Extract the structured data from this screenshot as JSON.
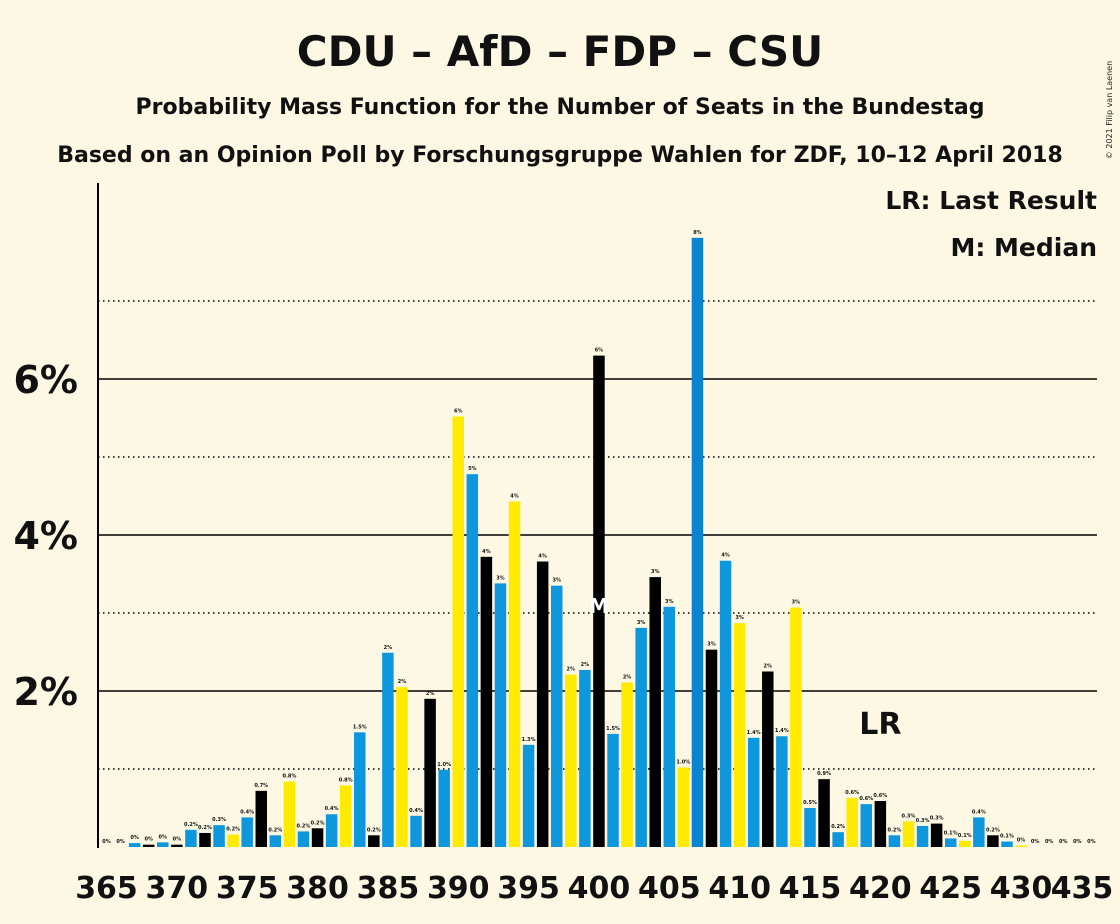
{
  "copyright": "© 2021 Filip van Laenen",
  "chart_data": {
    "type": "bar",
    "title": "CDU – AfD – FDP – CSU",
    "subtitle1": "Probability Mass Function for the Number of Seats in the Bundestag",
    "subtitle2": "Based on an Opinion Poll by Forschungsgruppe Wahlen for ZDF, 10–12 April 2018",
    "legend": [
      {
        "key": "LR",
        "text": "LR: Last Result"
      },
      {
        "key": "M",
        "text": "M: Median"
      }
    ],
    "legend_position": "top-right",
    "median_seats": 400,
    "last_result_seats": 420,
    "median_marker_label": "M",
    "last_result_marker_label": "LR",
    "xlim": [
      365,
      435
    ],
    "ylim": [
      0,
      8.5
    ],
    "y_ticks": [
      {
        "value": 2,
        "label": "2%"
      },
      {
        "value": 4,
        "label": "4%"
      },
      {
        "value": 6,
        "label": "6%"
      }
    ],
    "x_ticks": [
      "365",
      "370",
      "375",
      "380",
      "385",
      "390",
      "395",
      "400",
      "405",
      "410",
      "415",
      "420",
      "425",
      "430",
      "435"
    ],
    "gridlines_dotted": [
      1,
      3,
      5,
      7
    ],
    "gridlines_solid": [
      2,
      4,
      6
    ],
    "colors": {
      "blue": "#0f97dd",
      "black": "#000000",
      "yellow": "#ffea00",
      "dark_blue": "#0a84d0"
    },
    "bars": [
      {
        "seats": 365,
        "value": 0.0,
        "label": "0%",
        "color": "blue"
      },
      {
        "seats": 366,
        "value": 0.0,
        "label": "0%",
        "color": "black"
      },
      {
        "seats": 367,
        "value": 0.05,
        "label": "0%",
        "color": "blue"
      },
      {
        "seats": 368,
        "value": 0.03,
        "label": "0%",
        "color": "black"
      },
      {
        "seats": 369,
        "value": 0.06,
        "label": "0%",
        "color": "blue"
      },
      {
        "seats": 370,
        "value": 0.03,
        "label": "0%",
        "color": "black"
      },
      {
        "seats": 371,
        "value": 0.22,
        "label": "0.2%",
        "color": "blue"
      },
      {
        "seats": 372,
        "value": 0.18,
        "label": "0.2%",
        "color": "black"
      },
      {
        "seats": 373,
        "value": 0.28,
        "label": "0.3%",
        "color": "blue"
      },
      {
        "seats": 374,
        "value": 0.16,
        "label": "0.2%",
        "color": "yellow"
      },
      {
        "seats": 375,
        "value": 0.38,
        "label": "0.4%",
        "color": "blue"
      },
      {
        "seats": 376,
        "value": 0.72,
        "label": "0.7%",
        "color": "black"
      },
      {
        "seats": 377,
        "value": 0.15,
        "label": "0.2%",
        "color": "blue"
      },
      {
        "seats": 378,
        "value": 0.84,
        "label": "0.8%",
        "color": "yellow"
      },
      {
        "seats": 379,
        "value": 0.2,
        "label": "0.2%",
        "color": "blue"
      },
      {
        "seats": 380,
        "value": 0.24,
        "label": "0.2%",
        "color": "black"
      },
      {
        "seats": 381,
        "value": 0.42,
        "label": "0.4%",
        "color": "blue"
      },
      {
        "seats": 382,
        "value": 0.79,
        "label": "0.8%",
        "color": "yellow"
      },
      {
        "seats": 383,
        "value": 1.47,
        "label": "1.5%",
        "color": "blue"
      },
      {
        "seats": 384,
        "value": 0.15,
        "label": "0.2%",
        "color": "black"
      },
      {
        "seats": 385,
        "value": 2.49,
        "label": "2%",
        "color": "blue"
      },
      {
        "seats": 386,
        "value": 2.05,
        "label": "2%",
        "color": "yellow"
      },
      {
        "seats": 387,
        "value": 0.4,
        "label": "0.4%",
        "color": "blue"
      },
      {
        "seats": 388,
        "value": 1.9,
        "label": "2%",
        "color": "black"
      },
      {
        "seats": 389,
        "value": 0.99,
        "label": "1.0%",
        "color": "blue"
      },
      {
        "seats": 390,
        "value": 5.52,
        "label": "6%",
        "color": "yellow"
      },
      {
        "seats": 391,
        "value": 4.78,
        "label": "5%",
        "color": "blue"
      },
      {
        "seats": 392,
        "value": 3.72,
        "label": "4%",
        "color": "black"
      },
      {
        "seats": 393,
        "value": 3.38,
        "label": "3%",
        "color": "blue"
      },
      {
        "seats": 394,
        "value": 4.43,
        "label": "4%",
        "color": "yellow"
      },
      {
        "seats": 395,
        "value": 1.31,
        "label": "1.3%",
        "color": "blue"
      },
      {
        "seats": 396,
        "value": 3.66,
        "label": "4%",
        "color": "black"
      },
      {
        "seats": 397,
        "value": 3.35,
        "label": "3%",
        "color": "blue"
      },
      {
        "seats": 398,
        "value": 2.21,
        "label": "2%",
        "color": "yellow"
      },
      {
        "seats": 399,
        "value": 2.27,
        "label": "2%",
        "color": "blue"
      },
      {
        "seats": 400,
        "value": 6.3,
        "label": "6%",
        "color": "black"
      },
      {
        "seats": 401,
        "value": 1.45,
        "label": "1.5%",
        "color": "blue"
      },
      {
        "seats": 402,
        "value": 2.11,
        "label": "2%",
        "color": "yellow"
      },
      {
        "seats": 403,
        "value": 2.81,
        "label": "3%",
        "color": "blue"
      },
      {
        "seats": 404,
        "value": 3.46,
        "label": "3%",
        "color": "black"
      },
      {
        "seats": 405,
        "value": 3.08,
        "label": "3%",
        "color": "blue"
      },
      {
        "seats": 406,
        "value": 1.02,
        "label": "1.0%",
        "color": "yellow"
      },
      {
        "seats": 407,
        "value": 7.81,
        "label": "8%",
        "color": "dark_blue"
      },
      {
        "seats": 408,
        "value": 2.53,
        "label": "3%",
        "color": "black"
      },
      {
        "seats": 409,
        "value": 3.67,
        "label": "4%",
        "color": "blue"
      },
      {
        "seats": 410,
        "value": 2.87,
        "label": "3%",
        "color": "yellow"
      },
      {
        "seats": 411,
        "value": 1.4,
        "label": "1.4%",
        "color": "blue"
      },
      {
        "seats": 412,
        "value": 2.25,
        "label": "2%",
        "color": "black"
      },
      {
        "seats": 413,
        "value": 1.42,
        "label": "1.4%",
        "color": "blue"
      },
      {
        "seats": 414,
        "value": 3.07,
        "label": "3%",
        "color": "yellow"
      },
      {
        "seats": 415,
        "value": 0.5,
        "label": "0.5%",
        "color": "blue"
      },
      {
        "seats": 416,
        "value": 0.87,
        "label": "0.9%",
        "color": "black"
      },
      {
        "seats": 417,
        "value": 0.19,
        "label": "0.2%",
        "color": "blue"
      },
      {
        "seats": 418,
        "value": 0.63,
        "label": "0.6%",
        "color": "yellow"
      },
      {
        "seats": 419,
        "value": 0.55,
        "label": "0.6%",
        "color": "blue"
      },
      {
        "seats": 420,
        "value": 0.59,
        "label": "0.6%",
        "color": "black"
      },
      {
        "seats": 421,
        "value": 0.15,
        "label": "0.2%",
        "color": "blue"
      },
      {
        "seats": 422,
        "value": 0.33,
        "label": "0.3%",
        "color": "yellow"
      },
      {
        "seats": 423,
        "value": 0.27,
        "label": "0.3%",
        "color": "blue"
      },
      {
        "seats": 424,
        "value": 0.3,
        "label": "0.3%",
        "color": "black"
      },
      {
        "seats": 425,
        "value": 0.11,
        "label": "0.1%",
        "color": "blue"
      },
      {
        "seats": 426,
        "value": 0.08,
        "label": "0.1%",
        "color": "yellow"
      },
      {
        "seats": 427,
        "value": 0.38,
        "label": "0.4%",
        "color": "blue"
      },
      {
        "seats": 428,
        "value": 0.15,
        "label": "0.2%",
        "color": "black"
      },
      {
        "seats": 429,
        "value": 0.07,
        "label": "0.1%",
        "color": "blue"
      },
      {
        "seats": 430,
        "value": 0.02,
        "label": "0%",
        "color": "yellow"
      },
      {
        "seats": 431,
        "value": 0.0,
        "label": "0%",
        "color": "blue"
      },
      {
        "seats": 432,
        "value": 0.0,
        "label": "0%",
        "color": "black"
      },
      {
        "seats": 433,
        "value": 0.0,
        "label": "0%",
        "color": "blue"
      },
      {
        "seats": 434,
        "value": 0.0,
        "label": "0%",
        "color": "yellow"
      },
      {
        "seats": 435,
        "value": 0.0,
        "label": "0%",
        "color": "blue"
      }
    ]
  }
}
